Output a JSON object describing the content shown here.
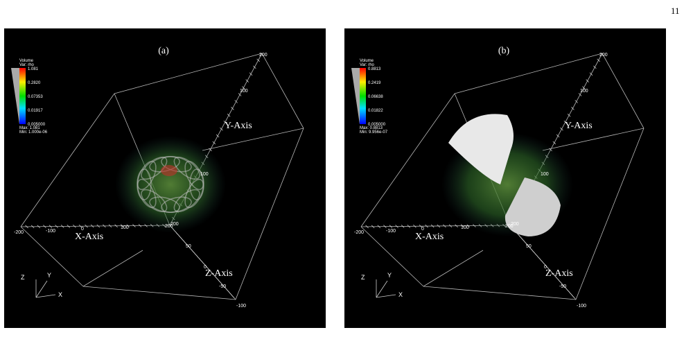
{
  "page_number": "11",
  "panels": [
    {
      "label": "(a)",
      "legend": {
        "title": "Volume",
        "variable": "Var: rho",
        "ticks": [
          "1.081",
          "0.2820",
          "0.07353",
          "0.01917",
          "0.005000"
        ],
        "max": "Max: 1.081",
        "min": "Min: 1.000e-06"
      },
      "axis_labels": {
        "x": "X-Axis",
        "y": "Y-Axis",
        "z": "Z-Axis"
      },
      "x_ticks": [
        "-200",
        "-100",
        "0",
        "100",
        "200"
      ],
      "y_ticks": [
        "200",
        "100",
        "100",
        "200"
      ],
      "z_ticks": [
        "50",
        "0",
        "-50",
        "-100"
      ],
      "triad": {
        "z": "Z",
        "y": "Y",
        "x": "X"
      }
    },
    {
      "label": "(b)",
      "legend": {
        "title": "Volume",
        "variable": "Var: rho",
        "ticks": [
          "0.8813",
          "0.2419",
          "0.06638",
          "0.01822",
          "0.005000"
        ],
        "max": "Max: 0.8813",
        "min": "Min: 9.956e-07"
      },
      "axis_labels": {
        "x": "X-Axis",
        "y": "Y-Axis",
        "z": "Z-Axis"
      },
      "x_ticks": [
        "-200",
        "-100",
        "0",
        "100",
        "200"
      ],
      "y_ticks": [
        "200",
        "100",
        "100",
        "200"
      ],
      "z_ticks": [
        "50",
        "0",
        "-50",
        "-100"
      ],
      "triad": {
        "z": "Z",
        "y": "Y",
        "x": "X"
      }
    }
  ]
}
